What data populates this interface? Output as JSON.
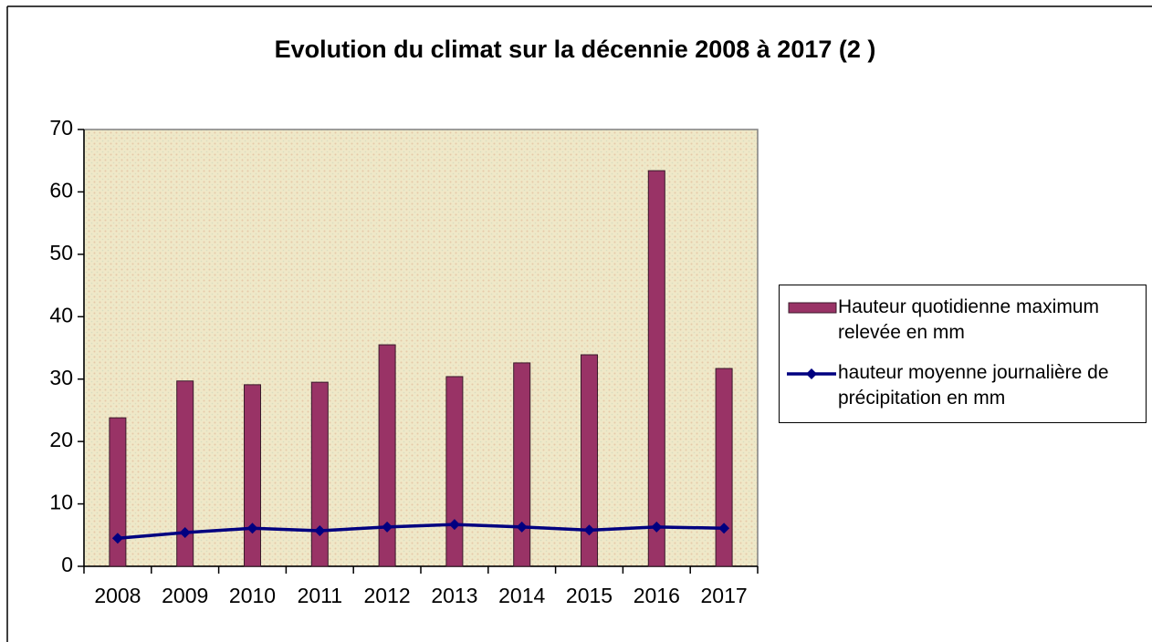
{
  "chart_data": {
    "type": "bar",
    "title": "Evolution du climat sur la décennie 2008 à 2017 (2 )",
    "categories": [
      "2008",
      "2009",
      "2010",
      "2011",
      "2012",
      "2013",
      "2014",
      "2015",
      "2016",
      "2017"
    ],
    "series": [
      {
        "name": "Hauteur quotidienne maximum relevée en mm",
        "type": "bar",
        "color": "#993366",
        "values": [
          23.8,
          29.7,
          29.1,
          29.5,
          35.5,
          30.4,
          32.6,
          33.9,
          63.4,
          31.7
        ]
      },
      {
        "name": "hauteur moyenne journalière de précipitation en mm",
        "type": "line",
        "color": "#000080",
        "values": [
          4.5,
          5.4,
          6.1,
          5.7,
          6.3,
          6.7,
          6.3,
          5.8,
          6.3,
          6.1
        ]
      }
    ],
    "ylim": [
      0,
      70
    ],
    "yticks": [
      0,
      10,
      20,
      30,
      40,
      50,
      60,
      70
    ],
    "grid": false,
    "legend": "right"
  }
}
